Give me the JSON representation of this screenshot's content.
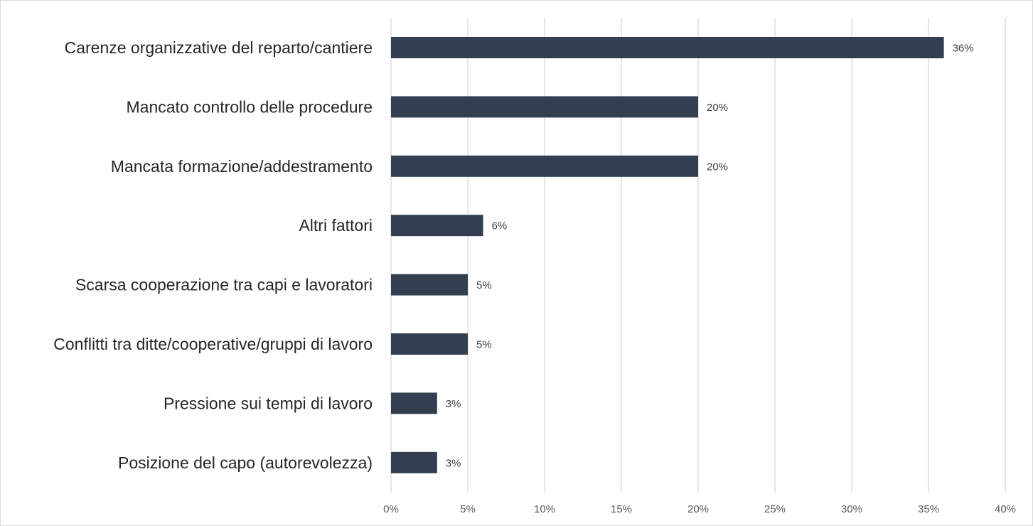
{
  "chart_data": {
    "type": "bar",
    "orientation": "horizontal",
    "categories": [
      "Carenze organizzative del reparto/cantiere",
      "Mancato controllo delle procedure",
      "Mancata formazione/addestramento",
      "Altri fattori",
      "Scarsa cooperazione tra capi e lavoratori",
      "Conflitti tra ditte/cooperative/gruppi di lavoro",
      "Pressione sui tempi di lavoro",
      "Posizione del capo (autorevolezza)"
    ],
    "values": [
      36,
      20,
      20,
      6,
      5,
      5,
      3,
      3
    ],
    "data_labels": [
      "36%",
      "20%",
      "20%",
      "6%",
      "5%",
      "5%",
      "3%",
      "3%"
    ],
    "xlim": [
      0,
      40
    ],
    "x_ticks": [
      0,
      5,
      10,
      15,
      20,
      25,
      30,
      35,
      40
    ],
    "x_tick_labels": [
      "0%",
      "5%",
      "10%",
      "15%",
      "20%",
      "25%",
      "30%",
      "35%",
      "40%"
    ],
    "title": "",
    "xlabel": "",
    "ylabel": "",
    "grid": "vertical",
    "legend": "none",
    "bar_color": "#333f50",
    "grid_color": "#d9d9d9"
  }
}
